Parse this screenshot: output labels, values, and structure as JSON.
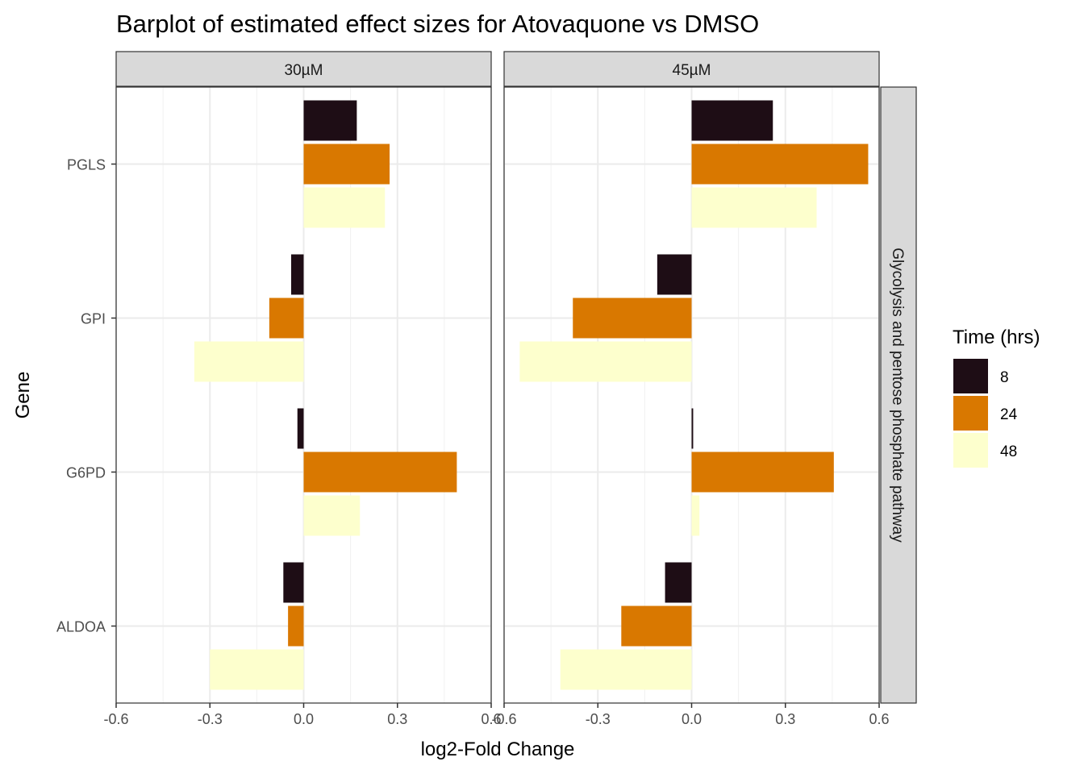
{
  "chart_data": {
    "type": "bar",
    "orientation": "horizontal",
    "title": "Barplot of estimated effect sizes for Atovaquone vs DMSO",
    "xlabel": "log2-Fold Change",
    "ylabel": "Gene",
    "xlim": [
      -0.6,
      0.6
    ],
    "x_ticks": [
      "-0.6",
      "-0.3",
      "0.0",
      "0.3",
      "0.6"
    ],
    "grid": true,
    "row_facet_label": "Glycolysis and pentose phosphate pathway",
    "categories": [
      "PGLS",
      "GPI",
      "G6PD",
      "ALDOA"
    ],
    "legend": {
      "title": "Time (hrs)",
      "position": "right",
      "entries": [
        {
          "label": "8",
          "color": "#1e0d15"
        },
        {
          "label": "24",
          "color": "#d97800"
        },
        {
          "label": "48",
          "color": "#fdffcd"
        }
      ]
    },
    "panels": [
      {
        "label": "30µM",
        "series": [
          {
            "name": "8",
            "values": [
              0.17,
              -0.04,
              -0.02,
              -0.065
            ]
          },
          {
            "name": "24",
            "values": [
              0.275,
              -0.11,
              0.49,
              -0.05
            ]
          },
          {
            "name": "48",
            "values": [
              0.26,
              -0.35,
              0.18,
              -0.3
            ]
          }
        ]
      },
      {
        "label": "45µM",
        "series": [
          {
            "name": "8",
            "values": [
              0.26,
              -0.11,
              0.005,
              -0.085
            ]
          },
          {
            "name": "24",
            "values": [
              0.565,
              -0.38,
              0.455,
              -0.225
            ]
          },
          {
            "name": "48",
            "values": [
              0.4,
              -0.55,
              0.025,
              -0.42
            ]
          }
        ]
      }
    ]
  }
}
